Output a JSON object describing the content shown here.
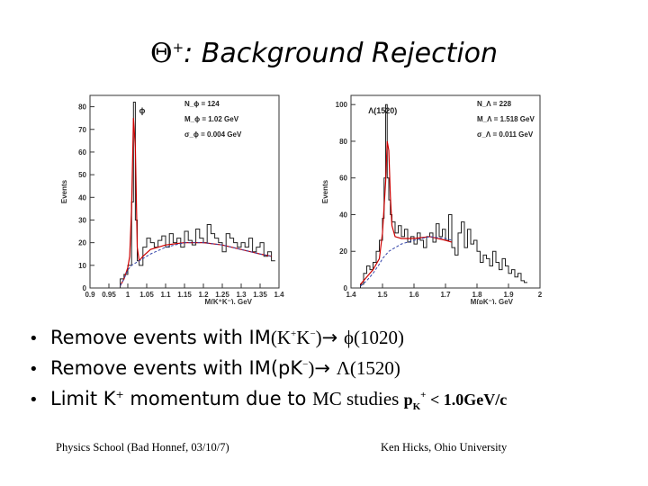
{
  "slide": {
    "title_symbol": "Θ",
    "title_sup": "+",
    "title_text": ": Background Rejection",
    "bullets": [
      {
        "marker": "•",
        "text_a": "Remove events with IM",
        "serif_a": "(K",
        "sup_a": "+",
        "serif_b": "K",
        "sup_b": "−",
        "serif_c": ")",
        "arrow": "→",
        "serif_d": "ϕ(1020)"
      },
      {
        "marker": "•",
        "text_a": "Remove events with IM(pK",
        "sup_a": "−",
        "serif_c": ")",
        "arrow": "→",
        "serif_d": "Λ(1520)"
      },
      {
        "marker": "•",
        "text_a": "Limit K",
        "sup_a": "+",
        "text_b": " momentum due to ",
        "serif_a": "MC studies ",
        "bold_a": "p",
        "bold_sub": "K",
        "bold_sup": "+",
        "bold_b": " < 1.0GeV/c"
      }
    ],
    "footer_left": "Physics School (Bad Honnef, 03/10/7)",
    "footer_right": "Ken Hicks, Ohio University"
  },
  "chart_data": [
    {
      "type": "line",
      "xlabel": "M(K⁺K⁻), GeV",
      "ylabel": "Events",
      "xlim": [
        0.9,
        1.4
      ],
      "ylim": [
        0,
        85
      ],
      "xticks": [
        "0.9",
        "0.95",
        "1",
        "1.05",
        "1.1",
        "1.15",
        "1.2",
        "1.25",
        "1.3",
        "1.35",
        "1.4"
      ],
      "yticks": [
        "0",
        "10",
        "20",
        "30",
        "40",
        "50",
        "60",
        "70",
        "80"
      ],
      "peak_label": "ϕ",
      "stats": [
        "N_ϕ = 124",
        "M_ϕ = 1.02 GeV",
        "σ_ϕ = 0.004 GeV"
      ],
      "series": [
        {
          "style": "histogram",
          "color": "#222222",
          "x": [
            0.98,
            0.99,
            1.0,
            1.01,
            1.015,
            1.02,
            1.025,
            1.03,
            1.04,
            1.05,
            1.06,
            1.07,
            1.08,
            1.09,
            1.1,
            1.11,
            1.12,
            1.13,
            1.14,
            1.15,
            1.16,
            1.17,
            1.18,
            1.19,
            1.2,
            1.21,
            1.22,
            1.23,
            1.24,
            1.25,
            1.26,
            1.27,
            1.28,
            1.29,
            1.3,
            1.31,
            1.32,
            1.33,
            1.34,
            1.35,
            1.36,
            1.37,
            1.38
          ],
          "y": [
            4,
            6,
            10,
            38,
            82,
            30,
            12,
            10,
            18,
            22,
            20,
            18,
            21,
            23,
            18,
            24,
            20,
            22,
            18,
            25,
            21,
            19,
            26,
            22,
            20,
            28,
            24,
            22,
            20,
            16,
            24,
            22,
            20,
            18,
            20,
            18,
            22,
            16,
            18,
            20,
            14,
            16,
            12
          ]
        },
        {
          "style": "curve",
          "color": "#cc0000",
          "x": [
            0.98,
            0.99,
            1.0,
            1.005,
            1.01,
            1.015,
            1.02,
            1.025,
            1.03,
            1.04,
            1.06,
            1.1,
            1.15,
            1.2,
            1.25,
            1.3,
            1.35,
            1.38
          ],
          "y": [
            1,
            4,
            9,
            14,
            35,
            75,
            62,
            18,
            12,
            14,
            17,
            19,
            20,
            20,
            19,
            17,
            15,
            14
          ]
        },
        {
          "style": "dashed",
          "color": "#3344aa",
          "x": [
            0.98,
            0.99,
            1.0,
            1.01,
            1.02,
            1.03,
            1.04,
            1.06,
            1.1,
            1.15,
            1.2,
            1.25,
            1.3,
            1.35,
            1.38
          ],
          "y": [
            1,
            4,
            8,
            10,
            11,
            12,
            13,
            15,
            18,
            20,
            20,
            19,
            17,
            15,
            14
          ]
        }
      ]
    },
    {
      "type": "line",
      "xlabel": "M(pK⁻), GeV",
      "ylabel": "Events",
      "xlim": [
        1.4,
        2.0
      ],
      "ylim": [
        0,
        105
      ],
      "xticks": [
        "1.4",
        "1.5",
        "1.6",
        "1.7",
        "1.8",
        "1.9",
        "2"
      ],
      "yticks": [
        "0",
        "20",
        "40",
        "60",
        "80",
        "100"
      ],
      "peak_label": "Λ(1520)",
      "stats": [
        "N_Λ = 228",
        "M_Λ = 1.518 GeV",
        "σ_Λ = 0.011 GeV"
      ],
      "series": [
        {
          "style": "histogram",
          "color": "#222222",
          "x": [
            1.43,
            1.44,
            1.45,
            1.46,
            1.47,
            1.48,
            1.49,
            1.5,
            1.505,
            1.51,
            1.515,
            1.52,
            1.525,
            1.53,
            1.54,
            1.55,
            1.56,
            1.57,
            1.58,
            1.59,
            1.6,
            1.61,
            1.62,
            1.63,
            1.64,
            1.65,
            1.66,
            1.67,
            1.68,
            1.69,
            1.7,
            1.71,
            1.72,
            1.73,
            1.74,
            1.75,
            1.76,
            1.77,
            1.78,
            1.79,
            1.8,
            1.81,
            1.82,
            1.83,
            1.84,
            1.85,
            1.86,
            1.87,
            1.88,
            1.89,
            1.9,
            1.91,
            1.92,
            1.93,
            1.94,
            1.95
          ],
          "y": [
            2,
            8,
            12,
            10,
            14,
            20,
            26,
            38,
            60,
            100,
            60,
            48,
            40,
            36,
            30,
            34,
            28,
            32,
            25,
            28,
            24,
            30,
            26,
            22,
            28,
            30,
            25,
            35,
            28,
            32,
            26,
            40,
            22,
            18,
            30,
            36,
            22,
            32,
            24,
            26,
            20,
            14,
            18,
            16,
            12,
            20,
            14,
            10,
            16,
            12,
            8,
            10,
            6,
            8,
            4,
            3
          ]
        },
        {
          "style": "curve",
          "color": "#cc0000",
          "x": [
            1.43,
            1.45,
            1.47,
            1.49,
            1.5,
            1.51,
            1.515,
            1.52,
            1.525,
            1.53,
            1.54,
            1.56,
            1.6,
            1.65,
            1.7,
            1.72
          ],
          "y": [
            2,
            6,
            10,
            16,
            30,
            58,
            80,
            75,
            50,
            34,
            28,
            27,
            27,
            28,
            26,
            25
          ]
        },
        {
          "style": "dashed",
          "color": "#3344aa",
          "x": [
            1.43,
            1.45,
            1.47,
            1.49,
            1.5,
            1.52,
            1.54,
            1.56,
            1.6,
            1.65,
            1.7,
            1.72
          ],
          "y": [
            1,
            4,
            8,
            13,
            16,
            20,
            22,
            24,
            26,
            28,
            27,
            26
          ]
        }
      ]
    }
  ]
}
